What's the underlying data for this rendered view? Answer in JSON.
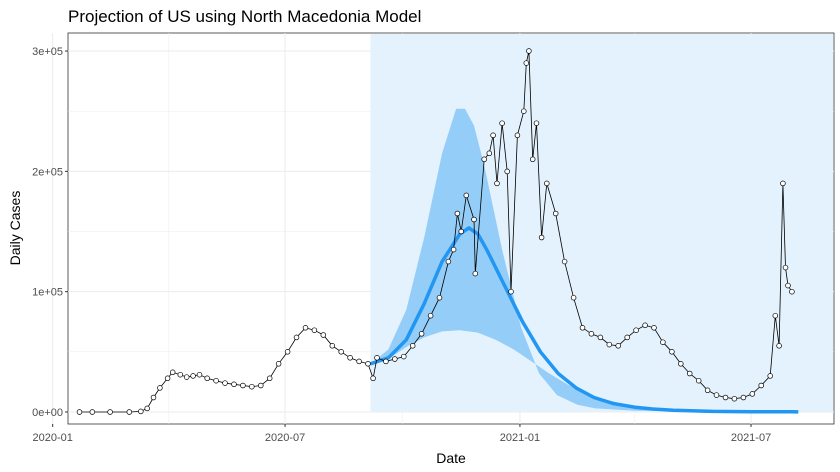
{
  "chart_data": {
    "type": "line",
    "title": "Projection of US using North Macedonia Model",
    "xlabel": "Date",
    "ylabel": "Daily Cases",
    "x_ticks": [
      "2020-01",
      "2020-07",
      "2021-01",
      "2021-07"
    ],
    "y_ticks": [
      "0e+00",
      "1e+05",
      "2e+05",
      "3e+05"
    ],
    "ylim": [
      -10000,
      315000
    ],
    "xlim": [
      "2020-01-13",
      "2021-09-04"
    ],
    "grid": true,
    "projection_window": [
      "2020-09-06",
      "2021-09-04"
    ],
    "colors": {
      "projection_band_light": "#e3f2fd",
      "projection_band_dark": "#90caf9",
      "projection_line": "#2196f3",
      "observed_line": "#000000",
      "observed_point_fill": "#ffffff",
      "grid": "#ebebeb"
    },
    "series": [
      {
        "kind": "observed",
        "points": [
          [
            "2020-01-22",
            0
          ],
          [
            "2020-02-01",
            0
          ],
          [
            "2020-02-15",
            0
          ],
          [
            "2020-03-01",
            0
          ],
          [
            "2020-03-10",
            500
          ],
          [
            "2020-03-15",
            3000
          ],
          [
            "2020-03-20",
            12000
          ],
          [
            "2020-03-25",
            20000
          ],
          [
            "2020-03-31",
            28000
          ],
          [
            "2020-04-04",
            33000
          ],
          [
            "2020-04-10",
            31000
          ],
          [
            "2020-04-15",
            29000
          ],
          [
            "2020-04-20",
            30000
          ],
          [
            "2020-04-25",
            31000
          ],
          [
            "2020-05-01",
            28000
          ],
          [
            "2020-05-08",
            26000
          ],
          [
            "2020-05-15",
            24000
          ],
          [
            "2020-05-22",
            23000
          ],
          [
            "2020-05-29",
            22000
          ],
          [
            "2020-06-05",
            21000
          ],
          [
            "2020-06-12",
            22000
          ],
          [
            "2020-06-19",
            28000
          ],
          [
            "2020-06-26",
            40000
          ],
          [
            "2020-07-03",
            50000
          ],
          [
            "2020-07-10",
            62000
          ],
          [
            "2020-07-17",
            70000
          ],
          [
            "2020-07-24",
            68000
          ],
          [
            "2020-07-31",
            64000
          ],
          [
            "2020-08-07",
            55000
          ],
          [
            "2020-08-14",
            50000
          ],
          [
            "2020-08-21",
            45000
          ],
          [
            "2020-08-28",
            42000
          ],
          [
            "2020-09-04",
            40000
          ],
          [
            "2020-09-08",
            28000
          ],
          [
            "2020-09-11",
            45000
          ],
          [
            "2020-09-18",
            42000
          ],
          [
            "2020-09-25",
            44000
          ],
          [
            "2020-10-02",
            46000
          ],
          [
            "2020-10-09",
            55000
          ],
          [
            "2020-10-16",
            65000
          ],
          [
            "2020-10-23",
            80000
          ],
          [
            "2020-10-30",
            95000
          ],
          [
            "2020-11-06",
            125000
          ],
          [
            "2020-11-10",
            135000
          ],
          [
            "2020-11-13",
            165000
          ],
          [
            "2020-11-16",
            150000
          ],
          [
            "2020-11-20",
            180000
          ],
          [
            "2020-11-26",
            160000
          ],
          [
            "2020-11-27",
            115000
          ],
          [
            "2020-12-04",
            210000
          ],
          [
            "2020-12-08",
            215000
          ],
          [
            "2020-12-11",
            230000
          ],
          [
            "2020-12-14",
            190000
          ],
          [
            "2020-12-18",
            240000
          ],
          [
            "2020-12-22",
            200000
          ],
          [
            "2020-12-25",
            100000
          ],
          [
            "2020-12-30",
            230000
          ],
          [
            "2021-01-04",
            250000
          ],
          [
            "2021-01-06",
            290000
          ],
          [
            "2021-01-08",
            300000
          ],
          [
            "2021-01-11",
            210000
          ],
          [
            "2021-01-14",
            240000
          ],
          [
            "2021-01-18",
            145000
          ],
          [
            "2021-01-22",
            190000
          ],
          [
            "2021-01-29",
            165000
          ],
          [
            "2021-02-05",
            125000
          ],
          [
            "2021-02-12",
            95000
          ],
          [
            "2021-02-19",
            70000
          ],
          [
            "2021-02-26",
            65000
          ],
          [
            "2021-03-05",
            62000
          ],
          [
            "2021-03-12",
            56000
          ],
          [
            "2021-03-19",
            55000
          ],
          [
            "2021-03-26",
            62000
          ],
          [
            "2021-04-02",
            68000
          ],
          [
            "2021-04-09",
            72000
          ],
          [
            "2021-04-16",
            70000
          ],
          [
            "2021-04-23",
            58000
          ],
          [
            "2021-04-30",
            50000
          ],
          [
            "2021-05-07",
            40000
          ],
          [
            "2021-05-14",
            32000
          ],
          [
            "2021-05-21",
            26000
          ],
          [
            "2021-05-28",
            18000
          ],
          [
            "2021-06-04",
            14000
          ],
          [
            "2021-06-11",
            12000
          ],
          [
            "2021-06-18",
            11000
          ],
          [
            "2021-06-25",
            12000
          ],
          [
            "2021-07-02",
            15000
          ],
          [
            "2021-07-09",
            22000
          ],
          [
            "2021-07-16",
            30000
          ],
          [
            "2021-07-20",
            80000
          ],
          [
            "2021-07-23",
            55000
          ],
          [
            "2021-07-26",
            190000
          ],
          [
            "2021-07-28",
            120000
          ],
          [
            "2021-07-30",
            105000
          ],
          [
            "2021-08-02",
            100000
          ]
        ]
      },
      {
        "kind": "projection",
        "points": [
          [
            "2020-09-06",
            40000
          ],
          [
            "2020-09-20",
            45000
          ],
          [
            "2020-10-04",
            60000
          ],
          [
            "2020-10-18",
            90000
          ],
          [
            "2020-11-01",
            125000
          ],
          [
            "2020-11-15",
            148000
          ],
          [
            "2020-11-22",
            153000
          ],
          [
            "2020-11-29",
            148000
          ],
          [
            "2020-12-06",
            135000
          ],
          [
            "2020-12-20",
            105000
          ],
          [
            "2021-01-03",
            75000
          ],
          [
            "2021-01-17",
            50000
          ],
          [
            "2021-01-31",
            32000
          ],
          [
            "2021-02-14",
            20000
          ],
          [
            "2021-02-28",
            12000
          ],
          [
            "2021-03-15",
            7000
          ],
          [
            "2021-04-01",
            4000
          ],
          [
            "2021-04-15",
            2500
          ],
          [
            "2021-05-01",
            1500
          ],
          [
            "2021-06-01",
            500
          ],
          [
            "2021-07-01",
            200
          ],
          [
            "2021-08-01",
            100
          ],
          [
            "2021-08-07",
            80
          ]
        ],
        "upper": [
          [
            "2020-09-06",
            40000
          ],
          [
            "2020-09-20",
            52000
          ],
          [
            "2020-10-04",
            85000
          ],
          [
            "2020-10-18",
            145000
          ],
          [
            "2020-11-01",
            215000
          ],
          [
            "2020-11-12",
            252000
          ],
          [
            "2020-11-19",
            252000
          ],
          [
            "2020-11-26",
            238000
          ],
          [
            "2020-12-04",
            205000
          ],
          [
            "2020-12-18",
            135000
          ],
          [
            "2021-01-02",
            70000
          ],
          [
            "2021-01-16",
            32000
          ],
          [
            "2021-01-30",
            14000
          ],
          [
            "2021-02-15",
            6000
          ],
          [
            "2021-03-01",
            3000
          ],
          [
            "2021-04-01",
            1000
          ],
          [
            "2021-08-07",
            200
          ]
        ],
        "lower": [
          [
            "2020-09-06",
            40000
          ],
          [
            "2020-09-20",
            44000
          ],
          [
            "2020-10-04",
            54000
          ],
          [
            "2020-10-18",
            62000
          ],
          [
            "2020-11-01",
            67000
          ],
          [
            "2020-11-15",
            68000
          ],
          [
            "2020-11-29",
            66000
          ],
          [
            "2020-12-13",
            60000
          ],
          [
            "2020-12-27",
            52000
          ],
          [
            "2021-01-10",
            42000
          ],
          [
            "2021-01-24",
            32000
          ],
          [
            "2021-02-07",
            23000
          ],
          [
            "2021-02-21",
            16000
          ],
          [
            "2021-03-07",
            11000
          ],
          [
            "2021-03-21",
            7000
          ],
          [
            "2021-04-04",
            4500
          ],
          [
            "2021-05-01",
            2000
          ],
          [
            "2021-06-01",
            700
          ],
          [
            "2021-07-01",
            300
          ],
          [
            "2021-08-07",
            100
          ]
        ]
      }
    ]
  }
}
